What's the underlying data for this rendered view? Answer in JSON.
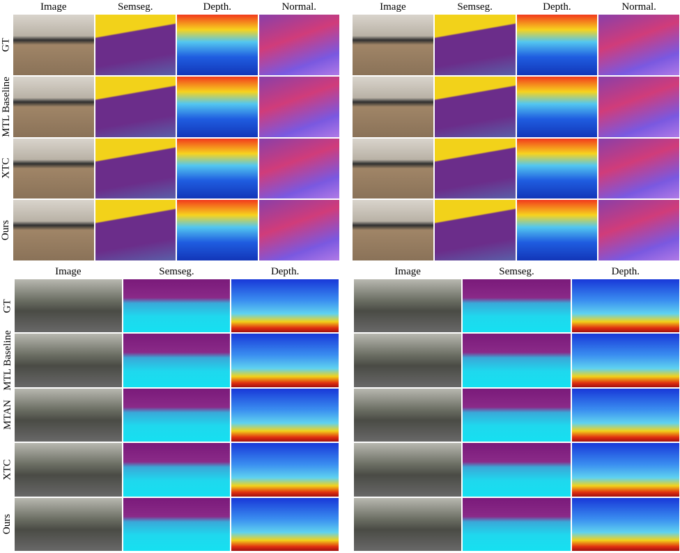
{
  "panels": [
    {
      "columns": [
        "Image",
        "Semseg.",
        "Depth.",
        "Normal."
      ],
      "rows": [
        "GT",
        "MTL Baseline",
        "XTC",
        "Ours"
      ]
    },
    {
      "columns": [
        "Image",
        "Semseg.",
        "Depth.",
        "Normal."
      ]
    },
    {
      "columns": [
        "Image",
        "Semseg.",
        "Depth."
      ],
      "rows": [
        "GT",
        "MTL Baseline",
        "MTAN",
        "XTC",
        "Ours"
      ]
    },
    {
      "columns": [
        "Image",
        "Semseg.",
        "Depth."
      ]
    }
  ]
}
